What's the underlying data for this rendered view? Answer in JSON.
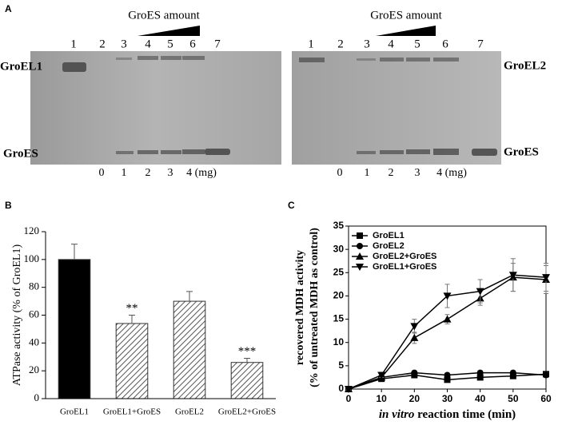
{
  "panel_labels": [
    "A",
    "B",
    "C"
  ],
  "gels": [
    {
      "header": "GroES amount",
      "lanes": [
        "1",
        "2",
        "3",
        "4",
        "5",
        "6",
        "7"
      ],
      "top_band": "GroEL1",
      "bottom_band": "GroES",
      "amounts": [
        "0",
        "1",
        "2",
        "3",
        "4 (mg)"
      ]
    },
    {
      "header": "GroES amount",
      "lanes": [
        "1",
        "2",
        "3",
        "4",
        "5",
        "6",
        "7"
      ],
      "top_band": "GroEL2",
      "bottom_band": "GroES",
      "amounts": [
        "0",
        "1",
        "2",
        "3",
        "4 (mg)"
      ]
    }
  ],
  "chart_data": [
    {
      "type": "bar",
      "ylabel": "ATPase activity (% of GroEL1)",
      "categories": [
        "GroEL1",
        "GroEL1+GroES",
        "GroEL2",
        "GroEL2+GroES"
      ],
      "values": [
        100,
        54,
        70,
        26
      ],
      "errors": [
        11,
        6,
        7,
        3
      ],
      "annotations": [
        null,
        "**",
        null,
        "***"
      ],
      "colors": [
        "#000000",
        "#ffffff",
        "#ffffff",
        "#ffffff"
      ],
      "hatched": [
        false,
        true,
        true,
        true
      ],
      "ylim": [
        0,
        120
      ],
      "yticks": [
        0,
        20,
        40,
        60,
        80,
        100,
        120
      ]
    },
    {
      "type": "line",
      "ylabel": [
        "recovered MDH activity",
        "(% of untreated MDH as control)"
      ],
      "xlabel": [
        "in vitro",
        "reaction time (min)"
      ],
      "x": [
        0,
        10,
        20,
        30,
        40,
        50,
        60
      ],
      "xlim": [
        0,
        60
      ],
      "xticks": [
        0,
        10,
        20,
        30,
        40,
        50,
        60
      ],
      "ylim": [
        0,
        35
      ],
      "yticks": [
        0,
        5,
        10,
        15,
        20,
        25,
        30,
        35
      ],
      "legend": "upper left",
      "series": [
        {
          "name": "GroEL1",
          "color": "#000000",
          "marker": "square",
          "values": [
            0,
            2.2,
            3,
            2,
            2.5,
            2.8,
            3.2
          ],
          "errors": [
            0.2,
            0.4,
            0.4,
            0.4,
            0.4,
            0.4,
            0.5
          ]
        },
        {
          "name": "GroEL2",
          "color": "#000000",
          "marker": "circle",
          "values": [
            0,
            2.5,
            3.5,
            3,
            3.5,
            3.5,
            3
          ],
          "errors": [
            0.2,
            0.4,
            0.4,
            0.4,
            0.4,
            0.4,
            0.5
          ]
        },
        {
          "name": "GroEL2+GroES",
          "color": "#000000",
          "marker": "triangle-up",
          "values": [
            0,
            2.5,
            11,
            15,
            19.5,
            24,
            23.5
          ],
          "errors": [
            0.2,
            0.5,
            1.2,
            1,
            1.5,
            3,
            3
          ]
        },
        {
          "name": "GroEL1+GroES",
          "color": "#000000",
          "marker": "triangle-down",
          "values": [
            0,
            3,
            13.5,
            20,
            21,
            24.5,
            24
          ],
          "errors": [
            0.2,
            0.5,
            1.5,
            2.5,
            2.5,
            3.5,
            3
          ]
        }
      ]
    }
  ]
}
